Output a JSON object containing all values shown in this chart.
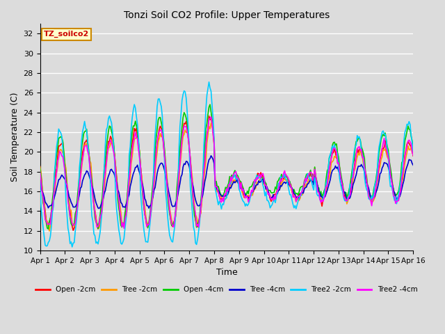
{
  "title": "Tonzi Soil CO2 Profile: Upper Temperatures",
  "xlabel": "Time",
  "ylabel": "Soil Temperature (C)",
  "ylim": [
    10,
    33
  ],
  "yticks": [
    10,
    12,
    14,
    16,
    18,
    20,
    22,
    24,
    26,
    28,
    30,
    32
  ],
  "xlim": [
    0,
    360
  ],
  "bg_color": "#dcdcdc",
  "plot_bg_color": "#dcdcdc",
  "grid_color": "#ffffff",
  "series": {
    "Open -2cm": {
      "color": "#ff0000",
      "lw": 1.2
    },
    "Tree -2cm": {
      "color": "#ff9900",
      "lw": 1.2
    },
    "Open -4cm": {
      "color": "#00cc00",
      "lw": 1.2
    },
    "Tree -4cm": {
      "color": "#0000cc",
      "lw": 1.2
    },
    "Tree2 -2cm": {
      "color": "#00ccff",
      "lw": 1.2
    },
    "Tree2 -4cm": {
      "color": "#ff00ff",
      "lw": 1.2
    }
  },
  "label_box": {
    "text": "TZ_soilco2",
    "facecolor": "#ffffcc",
    "edgecolor": "#cc8800",
    "textcolor": "#cc0000"
  },
  "xtick_labels": [
    "Apr 1",
    "Apr 2",
    "Apr 3",
    "Apr 4",
    "Apr 5",
    "Apr 6",
    "Apr 7",
    "Apr 8",
    "Apr 9",
    "Apr 10",
    "Apr 11",
    "Apr 12",
    "Apr 13",
    "Apr 14",
    "Apr 15",
    "Apr 16"
  ],
  "xtick_positions": [
    0,
    24,
    48,
    72,
    96,
    120,
    144,
    168,
    192,
    216,
    240,
    264,
    288,
    312,
    336,
    360
  ]
}
